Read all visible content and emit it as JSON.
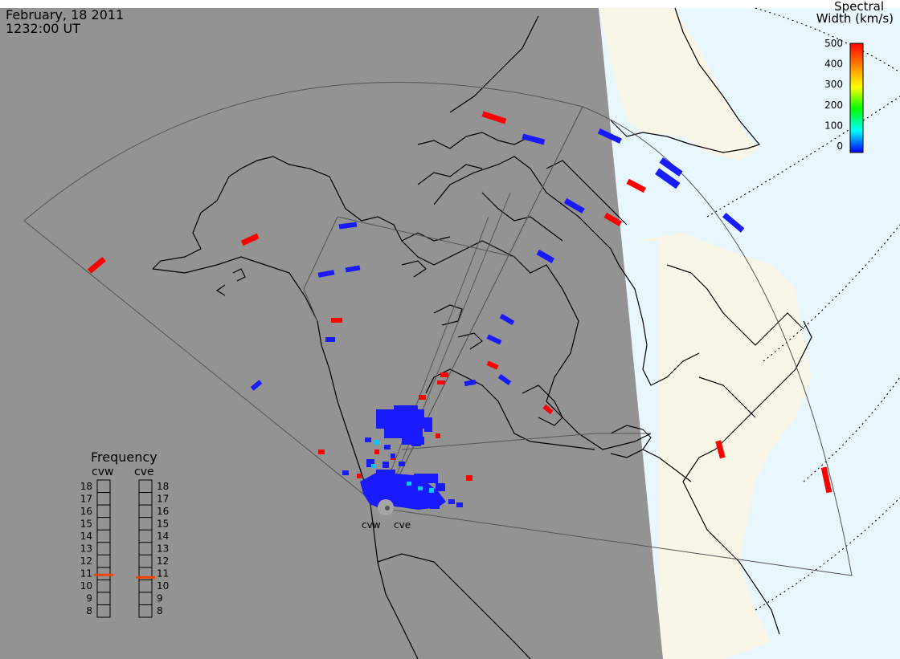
{
  "header": {
    "date": "February, 18 2011",
    "time": "1232:00 UT"
  },
  "colorbar": {
    "title_line1": "Spectral",
    "title_line2": "Width (km/s)",
    "ticks": [
      "500",
      "400",
      "300",
      "200",
      "100",
      "0"
    ],
    "colors": [
      "#ff0000",
      "#ff8000",
      "#ffff00",
      "#00ff00",
      "#00ffff",
      "#0000ff"
    ]
  },
  "frequency_panel": {
    "title": "Frequency",
    "col_left_label": "cvw",
    "col_right_label": "cve",
    "levels": [
      "18",
      "17",
      "16",
      "15",
      "14",
      "13",
      "12",
      "11",
      "10",
      "9",
      "8"
    ],
    "cvw_value": 10.9,
    "cve_value": 10.7,
    "marker_color": "#ff4000"
  },
  "radar_labels": {
    "west": "cvw",
    "east": "cve"
  },
  "colors": {
    "night": "#939393",
    "day_land": "#f8f6e6",
    "day_ocean": "#e8f6fd",
    "high_width": "#ff0000",
    "low_width": "#1a1aff",
    "mid_width": "#00c8ff"
  }
}
